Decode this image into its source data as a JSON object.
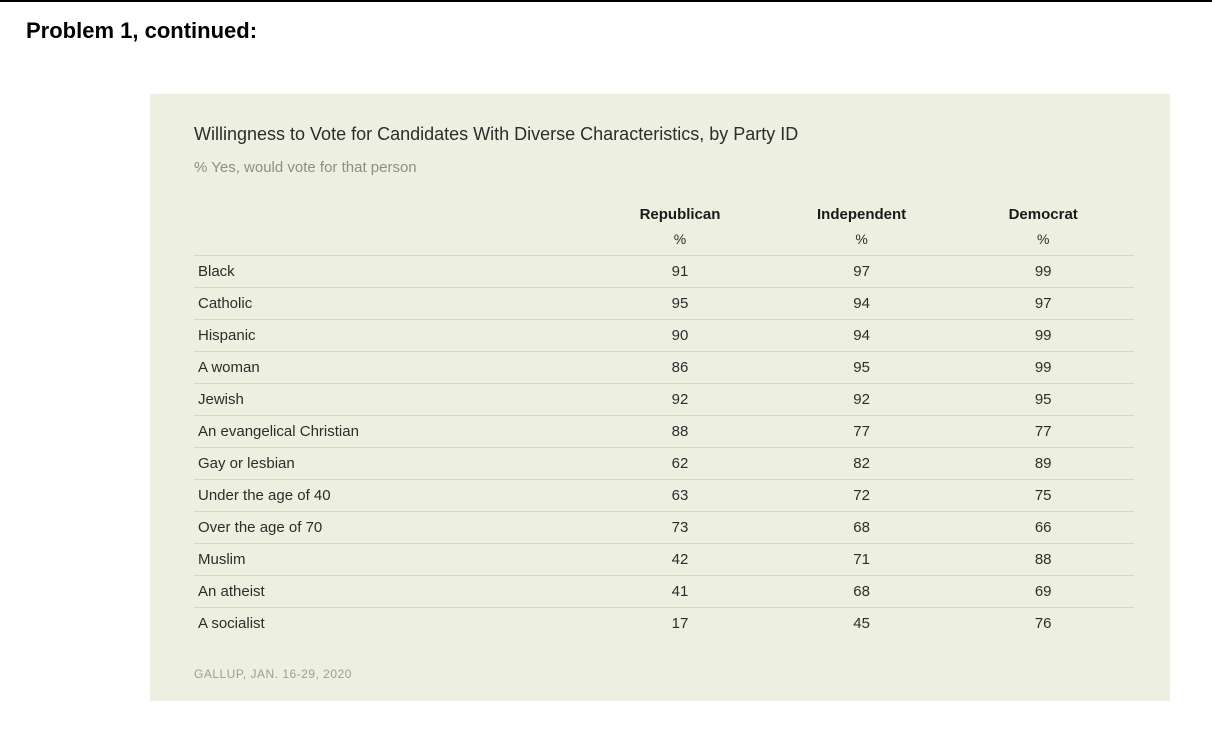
{
  "page": {
    "heading": "Problem 1, continued:"
  },
  "table": {
    "type": "table",
    "background_color": "#edf0e0",
    "row_border_color": "#d4d8c4",
    "title": "Willingness to Vote for Candidates With Diverse Characteristics, by Party ID",
    "subtitle": "% Yes, would vote for that person",
    "title_fontsize": 18,
    "subtitle_fontsize": 15,
    "subtitle_color": "#8d9080",
    "columns": [
      {
        "label": "Republican",
        "unit": "%"
      },
      {
        "label": "Independent",
        "unit": "%"
      },
      {
        "label": "Democrat",
        "unit": "%"
      }
    ],
    "rows": [
      {
        "label": "Black",
        "values": [
          91,
          97,
          99
        ]
      },
      {
        "label": "Catholic",
        "values": [
          95,
          94,
          97
        ]
      },
      {
        "label": "Hispanic",
        "values": [
          90,
          94,
          99
        ]
      },
      {
        "label": "A woman",
        "values": [
          86,
          95,
          99
        ]
      },
      {
        "label": "Jewish",
        "values": [
          92,
          92,
          95
        ]
      },
      {
        "label": "An evangelical Christian",
        "values": [
          88,
          77,
          77
        ]
      },
      {
        "label": "Gay or lesbian",
        "values": [
          62,
          82,
          89
        ]
      },
      {
        "label": "Under the age of 40",
        "values": [
          63,
          72,
          75
        ]
      },
      {
        "label": "Over the age of 70",
        "values": [
          73,
          68,
          66
        ]
      },
      {
        "label": "Muslim",
        "values": [
          42,
          71,
          88
        ]
      },
      {
        "label": "An atheist",
        "values": [
          41,
          68,
          69
        ]
      },
      {
        "label": "A socialist",
        "values": [
          17,
          45,
          76
        ]
      }
    ],
    "source": "GALLUP, JAN. 16-29, 2020"
  }
}
